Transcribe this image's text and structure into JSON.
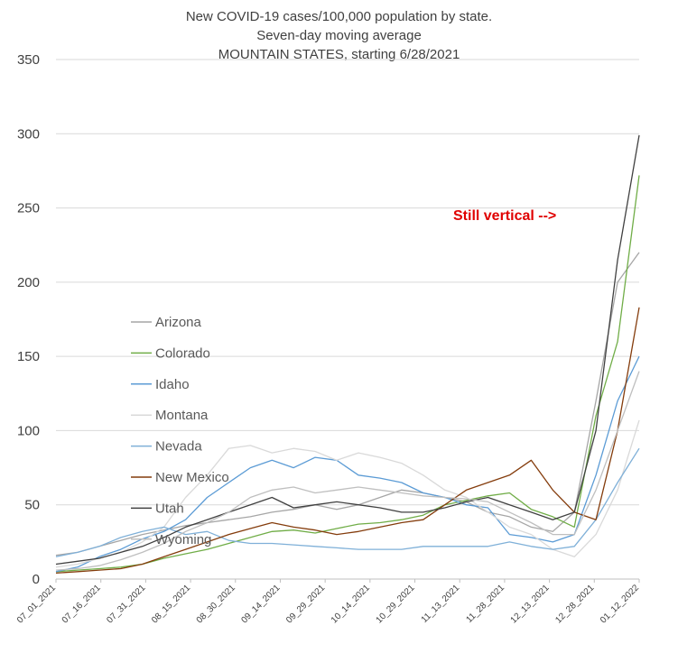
{
  "chart_data": {
    "type": "line",
    "title": "New COVID-19 cases/100,000 population by state.",
    "subtitle": "Seven-day moving average",
    "subtitle2": "MOUNTAIN STATES, starting 6/28/2021",
    "xlabel": "",
    "ylabel": "",
    "ylim": [
      0,
      350
    ],
    "yticks": [
      0,
      50,
      100,
      150,
      200,
      250,
      300,
      350
    ],
    "grid": "horizontal",
    "legend_position": "left-center",
    "x_tick_labels": [
      "07_01_2021",
      "07_16_2021",
      "07_31_2021",
      "08_15_2021",
      "08_30_2021",
      "09_14_2021",
      "09_29_2021",
      "10_14_2021",
      "10_29_2021",
      "11_13_2021",
      "11_28_2021",
      "12_13_2021",
      "12_28_2021",
      "01_12_2022"
    ],
    "annotation": "Still vertical -->",
    "series": [
      {
        "name": "Arizona",
        "color": "#a6a6a6",
        "values": [
          16,
          18,
          22,
          26,
          30,
          33,
          36,
          38,
          40,
          42,
          45,
          47,
          50,
          47,
          50,
          55,
          60,
          58,
          55,
          52,
          45,
          42,
          35,
          32,
          45,
          120,
          200,
          220
        ]
      },
      {
        "name": "Colorado",
        "color": "#70ad47",
        "values": [
          5,
          6,
          7,
          8,
          10,
          14,
          17,
          20,
          24,
          28,
          32,
          33,
          31,
          34,
          37,
          38,
          40,
          43,
          50,
          53,
          56,
          58,
          47,
          42,
          35,
          110,
          160,
          272
        ]
      },
      {
        "name": "Idaho",
        "color": "#5b9bd5",
        "values": [
          5,
          8,
          15,
          20,
          27,
          32,
          40,
          55,
          65,
          75,
          80,
          75,
          82,
          80,
          70,
          68,
          65,
          58,
          55,
          50,
          48,
          30,
          28,
          25,
          30,
          70,
          120,
          150
        ]
      },
      {
        "name": "Montana",
        "color": "#d9d9d9",
        "values": [
          8,
          10,
          14,
          18,
          25,
          35,
          55,
          70,
          88,
          90,
          85,
          88,
          86,
          80,
          85,
          82,
          78,
          70,
          60,
          55,
          45,
          35,
          30,
          20,
          15,
          30,
          60,
          107
        ]
      },
      {
        "name": "Nevada",
        "color": "#7fb0d8",
        "values": [
          15,
          18,
          22,
          28,
          32,
          35,
          30,
          32,
          26,
          24,
          24,
          23,
          22,
          21,
          20,
          20,
          20,
          22,
          22,
          22,
          22,
          25,
          22,
          20,
          22,
          40,
          65,
          88
        ]
      },
      {
        "name": "New Mexico",
        "color": "#843c0c",
        "values": [
          4,
          5,
          6,
          7,
          10,
          15,
          20,
          25,
          30,
          34,
          38,
          35,
          33,
          30,
          32,
          35,
          38,
          40,
          50,
          60,
          65,
          70,
          80,
          60,
          45,
          40,
          100,
          183
        ]
      },
      {
        "name": "Utah",
        "color": "#404040",
        "values": [
          10,
          12,
          14,
          18,
          22,
          28,
          35,
          40,
          45,
          50,
          55,
          48,
          50,
          52,
          50,
          48,
          45,
          45,
          48,
          52,
          55,
          50,
          45,
          40,
          45,
          100,
          215,
          299
        ]
      },
      {
        "name": "Wyoming",
        "color": "#bfbfbf",
        "values": [
          6,
          7,
          9,
          13,
          18,
          24,
          32,
          38,
          45,
          55,
          60,
          62,
          58,
          60,
          62,
          60,
          58,
          56,
          55,
          54,
          52,
          45,
          38,
          30,
          30,
          60,
          100,
          140
        ]
      }
    ]
  }
}
